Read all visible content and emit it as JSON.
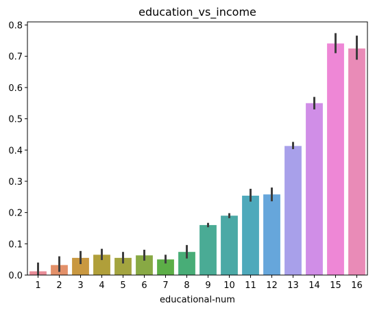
{
  "chart_data": {
    "type": "bar",
    "title": "education_vs_income",
    "xlabel": "educational-num",
    "ylabel": "",
    "ylim": [
      0,
      0.81
    ],
    "yticks": [
      0.0,
      0.1,
      0.2,
      0.3,
      0.4,
      0.5,
      0.6,
      0.7,
      0.8
    ],
    "ytick_labels": [
      "0.0",
      "0.1",
      "0.2",
      "0.3",
      "0.4",
      "0.5",
      "0.6",
      "0.7",
      "0.8"
    ],
    "categories": [
      "1",
      "2",
      "3",
      "4",
      "5",
      "6",
      "7",
      "8",
      "9",
      "10",
      "11",
      "12",
      "13",
      "14",
      "15",
      "16"
    ],
    "values": [
      0.012,
      0.032,
      0.055,
      0.065,
      0.055,
      0.063,
      0.05,
      0.074,
      0.16,
      0.19,
      0.254,
      0.258,
      0.413,
      0.55,
      0.741,
      0.725
    ],
    "error_low": [
      0.0,
      0.01,
      0.035,
      0.048,
      0.037,
      0.046,
      0.037,
      0.053,
      0.153,
      0.182,
      0.235,
      0.236,
      0.403,
      0.53,
      0.71,
      0.689
    ],
    "error_high": [
      0.04,
      0.06,
      0.077,
      0.084,
      0.074,
      0.081,
      0.065,
      0.096,
      0.167,
      0.198,
      0.276,
      0.28,
      0.426,
      0.57,
      0.774,
      0.766
    ],
    "colors": [
      "#e98d98",
      "#e39069",
      "#c99840",
      "#b09f3a",
      "#a3a43f",
      "#88a944",
      "#5cae47",
      "#48ad77",
      "#4aab95",
      "#4ba9a6",
      "#4ea9bb",
      "#66a6db",
      "#a8a0ea",
      "#d08ee7",
      "#ee87d6",
      "#e98bb7"
    ],
    "error_color": "#3d3d3d",
    "grid": false,
    "legend": "none"
  }
}
